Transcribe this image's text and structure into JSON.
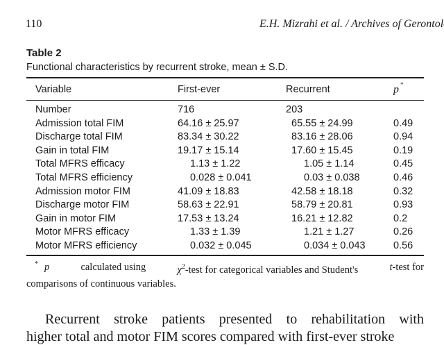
{
  "header": {
    "page_number": "110",
    "running_title": "E.H. Mizrahi et al. / Archives of Gerontolo"
  },
  "table": {
    "label": "Table 2",
    "caption": "Functional characteristics by recurrent stroke, mean ± S.D.",
    "columns": {
      "variable": "Variable",
      "first_ever": "First-ever",
      "recurrent": "Recurrent",
      "p": "p",
      "p_marker": "*"
    },
    "rows": [
      {
        "variable": "Number",
        "first_ever": "716",
        "recurrent": "203",
        "p": ""
      },
      {
        "variable": "Admission total FIM",
        "first_ever": "64.16 ± 25.97",
        "recurrent": "65.55 ± 24.99",
        "p": "0.49"
      },
      {
        "variable": "Discharge total FIM",
        "first_ever": "83.34 ± 30.22",
        "recurrent": "83.16 ± 28.06",
        "p": "0.94"
      },
      {
        "variable": "Gain in total FIM",
        "first_ever": "19.17 ± 15.14",
        "recurrent": "17.60 ± 15.45",
        "p": "0.19"
      },
      {
        "variable": "Total MFRS efficacy",
        "first_ever": "1.13 ± 1.22",
        "recurrent": "1.05 ± 1.14",
        "p": "0.45"
      },
      {
        "variable": "Total MFRS efficiency",
        "first_ever": "0.028 ± 0.041",
        "recurrent": "0.03 ± 0.038",
        "p": "0.46"
      },
      {
        "variable": "Admission motor FIM",
        "first_ever": "41.09 ± 18.83",
        "recurrent": "42.58 ± 18.18",
        "p": "0.32"
      },
      {
        "variable": "Discharge motor FIM",
        "first_ever": "58.63 ± 22.91",
        "recurrent": "58.79 ± 20.81",
        "p": "0.93"
      },
      {
        "variable": "Gain in motor FIM",
        "first_ever": "17.53 ± 13.24",
        "recurrent": "16.21 ± 12.82",
        "p": "0.2"
      },
      {
        "variable": "Motor MFRS efficacy",
        "first_ever": "1.33 ± 1.39",
        "recurrent": "1.21 ± 1.27",
        "p": "0.26"
      },
      {
        "variable": "Motor MFRS efficiency",
        "first_ever": "0.032 ± 0.045",
        "recurrent": "0.034 ± 0.043",
        "p": "0.56"
      }
    ]
  },
  "footnote": {
    "marker": "*",
    "p_symbol": "p",
    "text_a": "calculated using",
    "chi_symbol": "χ",
    "chi_sup": "2",
    "text_b": "-test for categorical variables and Student's",
    "t_symbol": "t",
    "text_c": "-test for",
    "text_d": "comparisons of continuous variables."
  },
  "body_text": {
    "line1_words": [
      "Recurrent",
      "stroke",
      "patients",
      "presented",
      "to",
      "rehabilitation",
      "with"
    ],
    "line2": "higher total and motor FIM scores compared with first-ever stroke"
  }
}
